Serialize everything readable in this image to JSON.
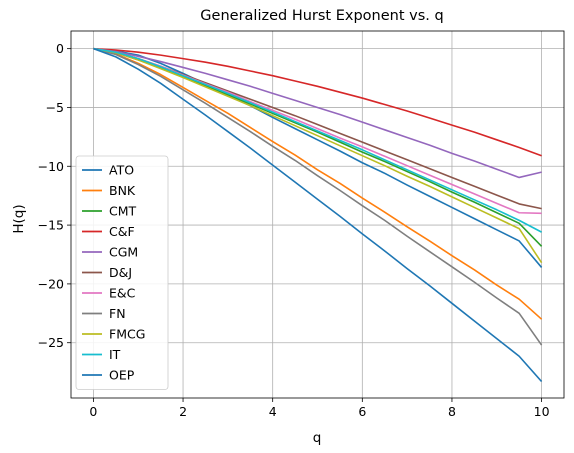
{
  "chart_data": {
    "type": "line",
    "title": "Generalized Hurst Exponent vs. q",
    "xlabel": "q",
    "ylabel": "H(q)",
    "xlim": [
      -0.5,
      10.5
    ],
    "ylim": [
      -29.7,
      1.5
    ],
    "xticks": [
      0,
      2,
      4,
      6,
      8,
      10
    ],
    "xtick_labels": [
      "0",
      "2",
      "4",
      "6",
      "8",
      "10"
    ],
    "yticks": [
      0,
      -5,
      -10,
      -15,
      -20,
      -25
    ],
    "ytick_labels": [
      "0",
      "−5",
      "−10",
      "−15",
      "−20",
      "−25"
    ],
    "grid": true,
    "legend_position": "lower-left",
    "x": [
      0,
      0.5,
      1,
      1.5,
      2,
      2.5,
      3,
      3.5,
      4,
      4.5,
      5,
      5.5,
      6,
      6.5,
      7,
      7.5,
      8,
      8.5,
      9,
      9.5,
      10
    ],
    "series": [
      {
        "name": "ATO",
        "color": "#1f77b4",
        "values": [
          0,
          -0.2,
          -0.55,
          -1.25,
          -2.1,
          -3.0,
          -3.95,
          -4.85,
          -5.85,
          -6.8,
          -7.75,
          -8.7,
          -9.7,
          -10.6,
          -11.6,
          -12.55,
          -13.5,
          -14.45,
          -15.4,
          -16.35,
          -18.6
        ]
      },
      {
        "name": "BNK",
        "color": "#ff7f0e",
        "values": [
          0,
          -0.45,
          -1.25,
          -2.2,
          -3.3,
          -4.4,
          -5.5,
          -6.7,
          -7.9,
          -9.05,
          -10.3,
          -11.45,
          -12.7,
          -13.9,
          -15.15,
          -16.35,
          -17.6,
          -18.8,
          -20.1,
          -21.3,
          -23.0
        ]
      },
      {
        "name": "CMT",
        "color": "#2ca02c",
        "values": [
          0,
          -0.35,
          -0.95,
          -1.65,
          -2.4,
          -3.15,
          -3.9,
          -4.7,
          -5.5,
          -6.3,
          -7.1,
          -7.95,
          -8.8,
          -9.6,
          -10.45,
          -11.3,
          -12.2,
          -13.05,
          -13.95,
          -14.85,
          -16.8
        ]
      },
      {
        "name": "C&F",
        "color": "#d62728",
        "values": [
          0,
          -0.12,
          -0.3,
          -0.55,
          -0.85,
          -1.15,
          -1.5,
          -1.9,
          -2.3,
          -2.75,
          -3.2,
          -3.7,
          -4.2,
          -4.75,
          -5.3,
          -5.9,
          -6.5,
          -7.1,
          -7.75,
          -8.4,
          -9.1
        ]
      },
      {
        "name": "CGM",
        "color": "#9467bd",
        "values": [
          0,
          -0.25,
          -0.65,
          -1.1,
          -1.6,
          -2.1,
          -2.65,
          -3.2,
          -3.8,
          -4.4,
          -5.0,
          -5.6,
          -6.25,
          -6.9,
          -7.55,
          -8.2,
          -8.9,
          -9.55,
          -10.25,
          -10.95,
          -10.5
        ]
      },
      {
        "name": "D&J",
        "color": "#8c564b",
        "values": [
          0,
          -0.3,
          -0.85,
          -1.5,
          -2.2,
          -2.9,
          -3.6,
          -4.3,
          -5.0,
          -5.7,
          -6.45,
          -7.2,
          -7.95,
          -8.7,
          -9.45,
          -10.2,
          -10.95,
          -11.7,
          -12.45,
          -13.2,
          -13.6
        ]
      },
      {
        "name": "E&C",
        "color": "#e377c2",
        "values": [
          0,
          -0.3,
          -0.85,
          -1.5,
          -2.25,
          -3.0,
          -3.7,
          -4.5,
          -5.25,
          -6.0,
          -6.8,
          -7.6,
          -8.35,
          -9.15,
          -9.95,
          -10.75,
          -11.55,
          -12.35,
          -13.15,
          -13.95,
          -14.0
        ]
      },
      {
        "name": "FN",
        "color": "#7f7f7f",
        "values": [
          0,
          -0.5,
          -1.35,
          -2.35,
          -3.5,
          -4.65,
          -5.85,
          -7.05,
          -8.3,
          -9.5,
          -10.8,
          -12.05,
          -13.35,
          -14.6,
          -15.95,
          -17.25,
          -18.55,
          -19.85,
          -21.2,
          -22.5,
          -25.2
        ]
      },
      {
        "name": "FMCG",
        "color": "#bcbd22",
        "values": [
          0,
          -0.35,
          -0.95,
          -1.7,
          -2.45,
          -3.25,
          -4.05,
          -4.85,
          -5.7,
          -6.55,
          -7.4,
          -8.25,
          -9.1,
          -9.95,
          -10.85,
          -11.7,
          -12.6,
          -13.5,
          -14.4,
          -15.3,
          -18.2
        ]
      },
      {
        "name": "IT",
        "color": "#17becf",
        "values": [
          0,
          -0.3,
          -0.85,
          -1.55,
          -2.3,
          -3.05,
          -3.8,
          -4.6,
          -5.4,
          -6.2,
          -7.0,
          -7.8,
          -8.6,
          -9.45,
          -10.3,
          -11.15,
          -12.0,
          -12.85,
          -13.7,
          -14.6,
          -15.6
        ]
      },
      {
        "name": "OEP",
        "color": "#1f77b4",
        "values": [
          0,
          -0.7,
          -1.75,
          -2.95,
          -4.3,
          -5.65,
          -7.05,
          -8.45,
          -9.9,
          -11.35,
          -12.8,
          -14.25,
          -15.75,
          -17.2,
          -18.7,
          -20.15,
          -21.65,
          -23.15,
          -24.65,
          -26.15,
          -28.3
        ]
      }
    ]
  }
}
